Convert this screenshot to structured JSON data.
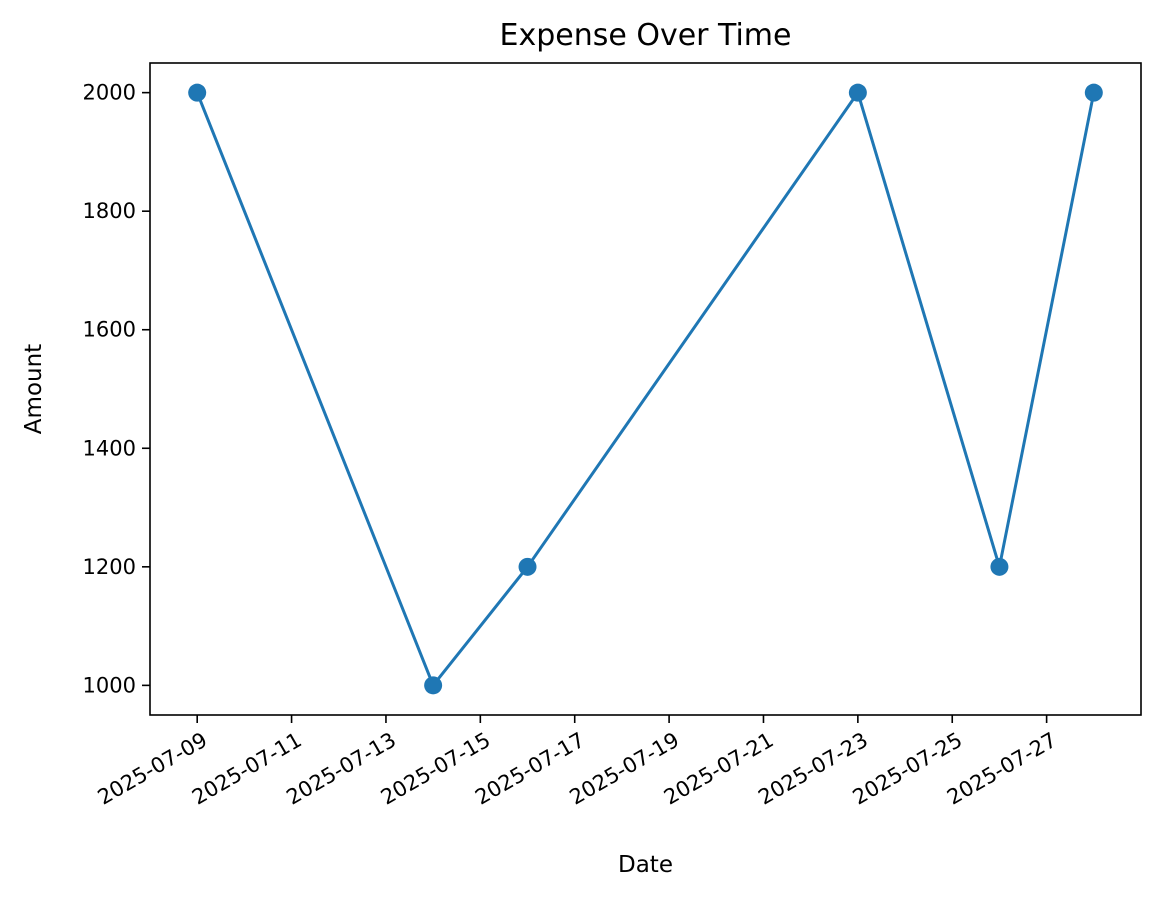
{
  "chart_data": {
    "type": "line",
    "title": "Expense Over Time",
    "xlabel": "Date",
    "ylabel": "Amount",
    "x": [
      "2025-07-09",
      "2025-07-14",
      "2025-07-16",
      "2025-07-23",
      "2025-07-26",
      "2025-07-28"
    ],
    "series": [
      {
        "values": [
          2000,
          1000,
          1200,
          2000,
          1200,
          2000
        ]
      }
    ],
    "xlim": [
      "2025-07-08",
      "2025-07-29"
    ],
    "ylim": [
      950,
      2050
    ],
    "x_ticks": [
      "2025-07-09",
      "2025-07-11",
      "2025-07-13",
      "2025-07-15",
      "2025-07-17",
      "2025-07-19",
      "2025-07-21",
      "2025-07-23",
      "2025-07-25",
      "2025-07-27"
    ],
    "y_ticks": [
      1000,
      1200,
      1400,
      1600,
      1800,
      2000
    ],
    "grid": false,
    "marker": "circle",
    "colors": {
      "series": "#1f77b4",
      "axes": "#000000",
      "background": "#ffffff"
    }
  }
}
